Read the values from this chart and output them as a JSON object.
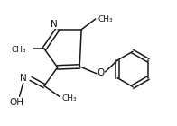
{
  "bg_color": "#ffffff",
  "line_color": "#1a1a1a",
  "line_width": 1.1,
  "font_size": 6.5,
  "figsize": [
    1.96,
    1.4
  ],
  "dpi": 100,
  "xlim": [
    0,
    196
  ],
  "ylim": [
    0,
    140
  ]
}
